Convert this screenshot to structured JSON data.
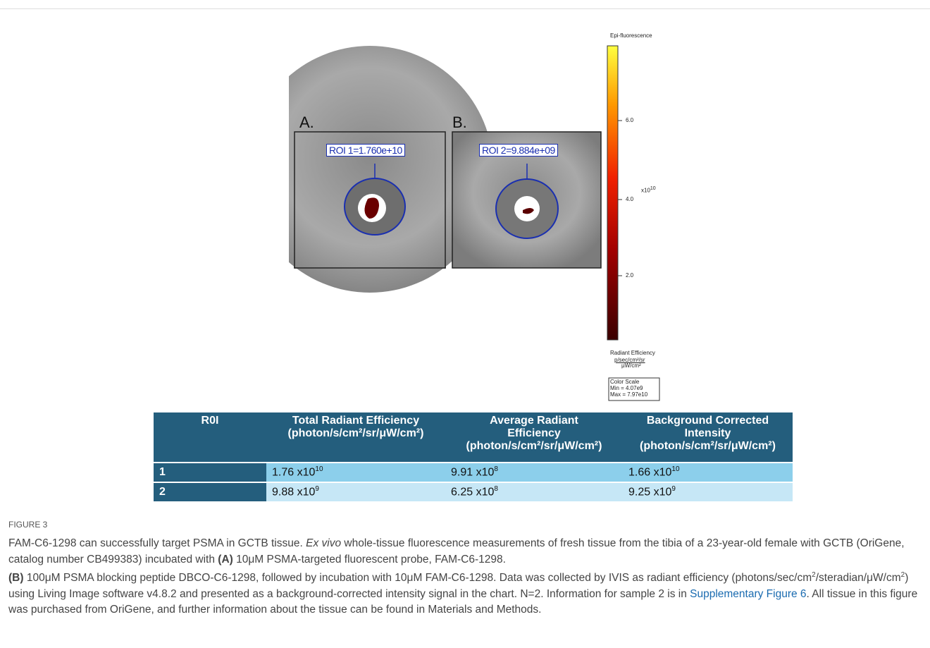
{
  "figure": {
    "panels": [
      {
        "label": "A.",
        "roi": "ROI 1=1.760e+10"
      },
      {
        "label": "B.",
        "roi": "ROI 2=9.884e+09"
      }
    ],
    "colorbar": {
      "title": "Epi-fluorescence",
      "ticks": [
        "6.0",
        "4.0",
        "2.0"
      ],
      "exponent": {
        "base": "x10",
        "sup": "10"
      },
      "unit_title": "Radiant Efficiency",
      "unit_num": "p/sec/cm²/sr",
      "unit_den": "µW/cm²",
      "scale": [
        "Color Scale",
        "Min = 4.07e9",
        "Max = 7.97e10"
      ]
    },
    "table": {
      "headers": [
        [
          "R0I"
        ],
        [
          "Total Radiant Efficiency",
          "(photon/s/cm²/sr/μW/cm²)"
        ],
        [
          "Average Radiant",
          "Efficiency",
          "(photon/s/cm²/sr/μW/cm²)"
        ],
        [
          "Background Corrected",
          "Intensity",
          "(photon/s/cm²/sr/μW/cm²)"
        ]
      ],
      "rows": [
        [
          "1",
          {
            "base": "1.76 x10",
            "sup": "10"
          },
          {
            "base": "9.91 x10",
            "sup": "8"
          },
          {
            "base": "1.66 x10",
            "sup": "10"
          }
        ],
        [
          "2",
          {
            "base": "9.88 x10",
            "sup": "9"
          },
          {
            "base": "6.25 x10",
            "sup": "8"
          },
          {
            "base": "9.25 x10",
            "sup": "9"
          }
        ]
      ]
    }
  },
  "caption": {
    "label": "FIGURE 3",
    "parts": [
      "FAM-C6-1298 can successfully target PSMA in GCTB tissue. ",
      "Ex vivo",
      " whole-tissue fluorescence measurements of fresh tissue from the tibia of a 23-year-old female with GCTB (OriGene, catalog number CB499383) incubated with ",
      "(A)",
      " 10μM PSMA-targeted fluorescent probe, FAM-C6-1298.",
      "(B)",
      " 100μM PSMA blocking peptide DBCO-C6-1298, followed by incubation with 10μM FAM-C6-1298. Data was collected by IVIS as radiant efficiency (photons/sec/cm",
      "2",
      "/steradian/μW/cm",
      "2",
      ") using Living Image software v4.8.2 and presented as a background-corrected intensity signal in the chart. N=2. Information for sample 2 is in ",
      "Supplementary Figure 6",
      ". All tissue in this figure was purchased from OriGene, and further information about the tissue can be found in Materials and Methods."
    ]
  }
}
